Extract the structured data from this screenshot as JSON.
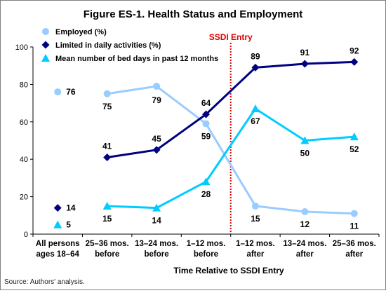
{
  "chart_data": {
    "type": "line",
    "title": "Figure ES-1. Health Status and Employment",
    "xlabel": "Time Relative to SSDI Entry",
    "ylabel": "",
    "ylim": [
      0,
      100
    ],
    "yticks": [
      0,
      20,
      40,
      60,
      80,
      100
    ],
    "grid": false,
    "legend_position": "top-left",
    "categories": [
      [
        "All persons",
        "ages 18–64"
      ],
      [
        "25–36 mos.",
        "before"
      ],
      [
        "13–24 mos.",
        "before"
      ],
      [
        "1–12 mos.",
        "before"
      ],
      [
        "1–12 mos.",
        "after"
      ],
      [
        "13–24 mos.",
        "after"
      ],
      [
        "25–36 mos.",
        "after"
      ]
    ],
    "series": [
      {
        "name": "Employed (%)",
        "values": [
          76,
          75,
          79,
          59,
          15,
          12,
          11
        ],
        "color": "#99ccff",
        "marker": "circle"
      },
      {
        "name": "Limited in daily activities (%)",
        "values": [
          14,
          41,
          45,
          64,
          89,
          91,
          92
        ],
        "color": "#000080",
        "marker": "diamond"
      },
      {
        "name": "Mean number of bed days in past 12 months",
        "values": [
          5,
          15,
          14,
          28,
          67,
          50,
          52
        ],
        "color": "#00ccff",
        "marker": "triangle"
      }
    ],
    "reference_line": {
      "label": "SSDI Entry",
      "color": "#e00000"
    },
    "source": "Source: Authors' analysis."
  }
}
